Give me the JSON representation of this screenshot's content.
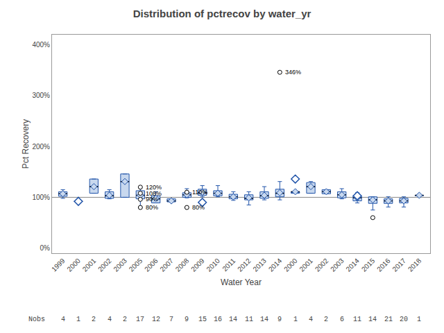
{
  "chart_data": {
    "type": "box",
    "title": "Distribution of pctrecov by water_yr",
    "x_label": "Water Year",
    "y_label": "Pct Recovery",
    "categories": [
      "1999",
      "2000",
      "2001",
      "2002",
      "2003",
      "2005",
      "2006",
      "2007",
      "2008",
      "2009",
      "2010",
      "2011",
      "2012",
      "2013",
      "2014",
      "2000",
      "2001",
      "2002",
      "2003",
      "2014",
      "2015",
      "2016",
      "2017",
      "2018"
    ],
    "q1": [
      102,
      92,
      108,
      98,
      100,
      97,
      89,
      91,
      100,
      104,
      103,
      97,
      95,
      98,
      101,
      108,
      108,
      107,
      99,
      93,
      88,
      88,
      89,
      103
    ],
    "median": [
      107,
      92,
      121,
      103,
      131,
      104,
      97,
      93,
      105,
      109,
      108,
      101,
      98,
      103,
      108,
      111,
      121,
      111,
      105,
      99,
      95,
      93,
      93,
      104
    ],
    "q3": [
      111,
      92,
      136,
      111,
      146,
      113,
      103,
      97,
      109,
      116,
      113,
      106,
      105,
      111,
      116,
      111,
      129,
      115,
      111,
      103,
      101,
      97,
      98,
      104
    ],
    "whisker_low": [
      98,
      92,
      108,
      97,
      100,
      80,
      89,
      91,
      99,
      101,
      101,
      94,
      85,
      95,
      95,
      108,
      108,
      107,
      97,
      89,
      75,
      81,
      81,
      103
    ],
    "whisker_high": [
      115,
      92,
      136,
      115,
      146,
      120,
      111,
      97,
      117,
      123,
      123,
      111,
      111,
      121,
      131,
      111,
      131,
      115,
      117,
      109,
      101,
      101,
      101,
      104
    ],
    "mean": [
      107,
      92,
      121,
      104,
      131,
      104,
      98,
      93,
      105,
      110,
      108,
      101,
      99,
      104,
      109,
      111,
      121,
      111,
      105,
      99,
      95,
      93,
      93,
      104
    ],
    "color": "#c8d8ee",
    "edge_color": "#2255aa",
    "median_color": "#000000",
    "ylim": [
      -10,
      420
    ],
    "yticks": [
      {
        "value": 0,
        "label": "0%"
      },
      {
        "value": 100,
        "label": "100%"
      },
      {
        "value": 200,
        "label": "200%"
      },
      {
        "value": 300,
        "label": "300%"
      },
      {
        "value": 400,
        "label": "400%"
      }
    ],
    "grid": false,
    "reference_line": {
      "value": 100,
      "color": "#888888"
    },
    "outliers": {
      "x_index": [
        5,
        5,
        5,
        5,
        8,
        20,
        14,
        8
      ],
      "values": [
        120,
        108,
        96,
        80,
        80,
        60,
        346,
        110
      ],
      "value_labels": [
        "120%",
        "108%",
        "96%",
        "80%",
        "80%",
        null,
        "346%",
        "110%"
      ],
      "color": "#000000",
      "fill_color": "#ffffff"
    },
    "single_points": {
      "x_index": [
        1,
        9,
        15,
        19
      ],
      "values": [
        92,
        90,
        136,
        103
      ],
      "color": "#2255aa",
      "fill_color": "#ffffff"
    },
    "nobs": {
      "label": "Nobs",
      "values": [
        4,
        1,
        2,
        4,
        2,
        17,
        12,
        7,
        9,
        15,
        16,
        14,
        11,
        14,
        9,
        1,
        4,
        2,
        6,
        11,
        14,
        21,
        20,
        1
      ]
    }
  }
}
